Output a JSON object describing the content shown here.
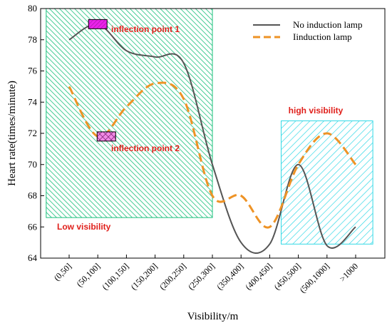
{
  "chart_data": {
    "type": "line",
    "xlabel": "Visibility/m",
    "ylabel": "Heart rate(times/minute)",
    "ylim": [
      64,
      80
    ],
    "yticks": [
      64,
      66,
      68,
      70,
      72,
      74,
      76,
      78,
      80
    ],
    "categories": [
      "(0,50]",
      "(50,100]",
      "(100,150]",
      "(150,200]",
      "(200,250]",
      "(250,300]",
      "(350,400]",
      "(400,450]",
      "(450,500]",
      "(500,1000]",
      ">1000"
    ],
    "series": [
      {
        "name": "No induction lamp",
        "style": "solid",
        "color": "#555555",
        "points": [
          [
            0,
            78.0
          ],
          [
            1,
            79.0
          ],
          [
            2,
            77.3
          ],
          [
            3,
            76.9
          ],
          [
            4,
            76.5
          ],
          [
            5,
            70.0
          ],
          [
            6,
            65.0
          ],
          [
            7,
            64.9
          ],
          [
            8,
            70.0
          ],
          [
            9,
            64.8
          ],
          [
            10,
            66.0
          ]
        ]
      },
      {
        "name": "Iinduction lamp",
        "style": "dashed",
        "color": "#ee9326",
        "points": [
          [
            0,
            75.0
          ],
          [
            1,
            71.8
          ],
          [
            2,
            73.7
          ],
          [
            3,
            75.2
          ],
          [
            4,
            74.2
          ],
          [
            5,
            68.0
          ],
          [
            6,
            68.0
          ],
          [
            7,
            66.0
          ],
          [
            8,
            70.0
          ],
          [
            9,
            72.0
          ],
          [
            10,
            70.0
          ]
        ]
      }
    ],
    "legend_position": "top-right",
    "grid": false,
    "regions": [
      {
        "label": "Low visibility",
        "x_range": [
          -0.8,
          5.0
        ],
        "y_range": [
          66.6,
          80.0
        ],
        "color": "#19c07b",
        "hatch": "diagonal"
      },
      {
        "label": "high visibility",
        "x_range": [
          7.4,
          10.6
        ],
        "y_range": [
          64.9,
          72.8
        ],
        "color": "#33d9e6",
        "hatch": "diagonal"
      }
    ],
    "markers": [
      {
        "label": "inflection point 1",
        "x": 1.0,
        "y": 79.0,
        "color": "#ea22ea",
        "style": "hatched-box"
      },
      {
        "label": "inflection point 2",
        "x": 1.3,
        "y": 71.8,
        "color": "#f28be6",
        "style": "crosshatched-box"
      }
    ]
  }
}
